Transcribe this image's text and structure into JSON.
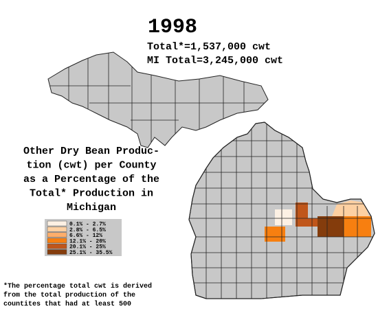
{
  "header": {
    "year": "1998",
    "total": "Total*=1,537,000 cwt",
    "mi_total": "MI Total=3,245,000 cwt"
  },
  "title_lines": [
    "Other Dry Bean Produc-",
    "tion (cwt) per County",
    "as a Percentage of the",
    "Total* Production in",
    "Michigan"
  ],
  "legend": [
    {
      "label": "0.1% - 2.7%",
      "color": "#fdf1e4"
    },
    {
      "label": "2.8% - 6.5%",
      "color": "#fdd0a2"
    },
    {
      "label": "6.6% - 12%",
      "color": "#fdae6b"
    },
    {
      "label": "12.1% - 20%",
      "color": "#f77f10"
    },
    {
      "label": "20.1% - 25%",
      "color": "#c0561a"
    },
    {
      "label": "25.1% - 35.5%",
      "color": "#843c0c"
    }
  ],
  "footnote": [
    "*The percentage total cwt is derived",
    "from the total production of the",
    "countites that had at least 500"
  ]
}
